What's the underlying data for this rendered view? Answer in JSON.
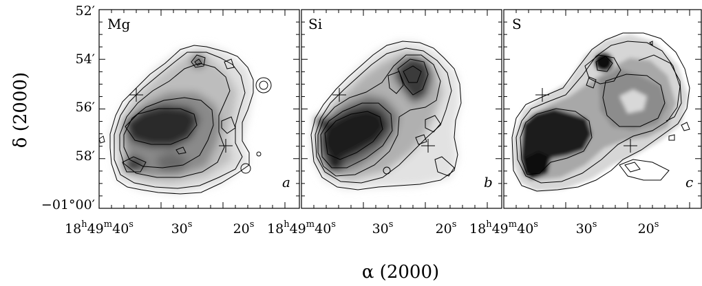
{
  "chart_data": {
    "type": "heatmap",
    "title": "",
    "xlabel": "α (2000)",
    "ylabel": "δ (2000)",
    "panels": [
      {
        "element": "Mg",
        "letter": "a"
      },
      {
        "element": "Si",
        "letter": "b"
      },
      {
        "element": "S",
        "letter": "c"
      }
    ],
    "x_tick_labels": [
      {
        "h": "18",
        "hs": "h",
        "m": "49",
        "ms": "m",
        "s": "40",
        "ss": "s"
      },
      {
        "s": "30",
        "ss": "s"
      },
      {
        "s": "20",
        "ss": "s"
      }
    ],
    "y_tick_labels": [
      "52′",
      "54′",
      "56′",
      "58′",
      "−01°00′"
    ],
    "dec_range_arcmin": [
      52,
      60
    ],
    "ra_range_s": [
      43.5,
      12.5
    ],
    "colormap": "grayscale, dark = high intensity",
    "contours": true
  }
}
